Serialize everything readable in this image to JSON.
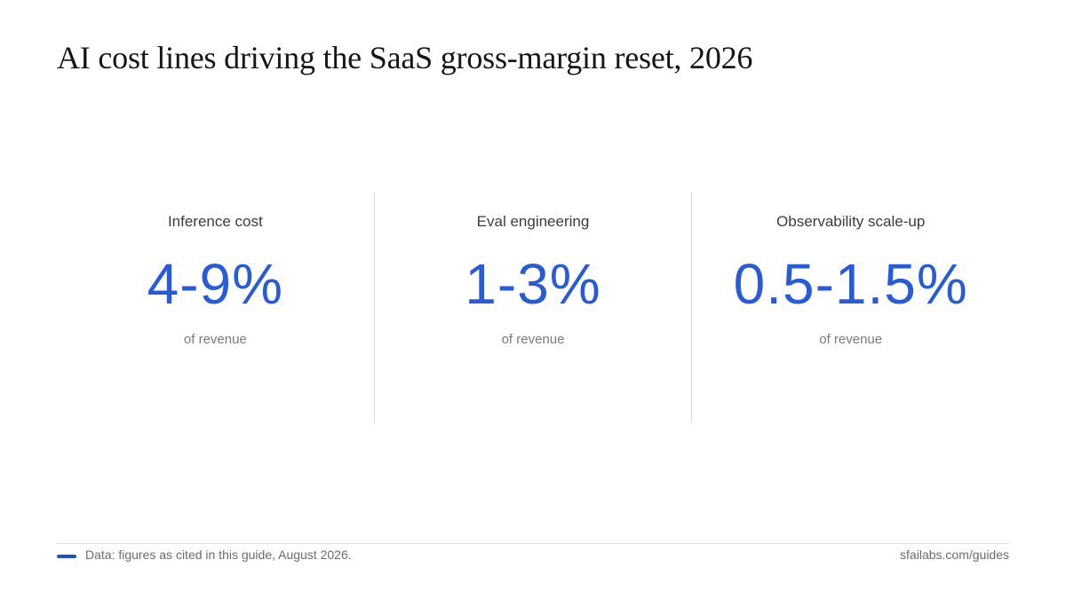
{
  "title": "AI cost lines driving the SaaS gross-margin reset, 2026",
  "stats": [
    {
      "label": "Inference cost",
      "value": "4-9%",
      "unit": "of revenue"
    },
    {
      "label": "Eval engineering",
      "value": "1-3%",
      "unit": "of revenue"
    },
    {
      "label": "Observability scale-up",
      "value": "0.5-1.5%",
      "unit": "of revenue"
    }
  ],
  "footer": {
    "source": "Data: figures as cited in this guide, August 2026.",
    "brand": "sfailabs.com/guides"
  },
  "colors": {
    "accent": "#2a5bd7",
    "footer_accent": "#1f4fc9"
  }
}
